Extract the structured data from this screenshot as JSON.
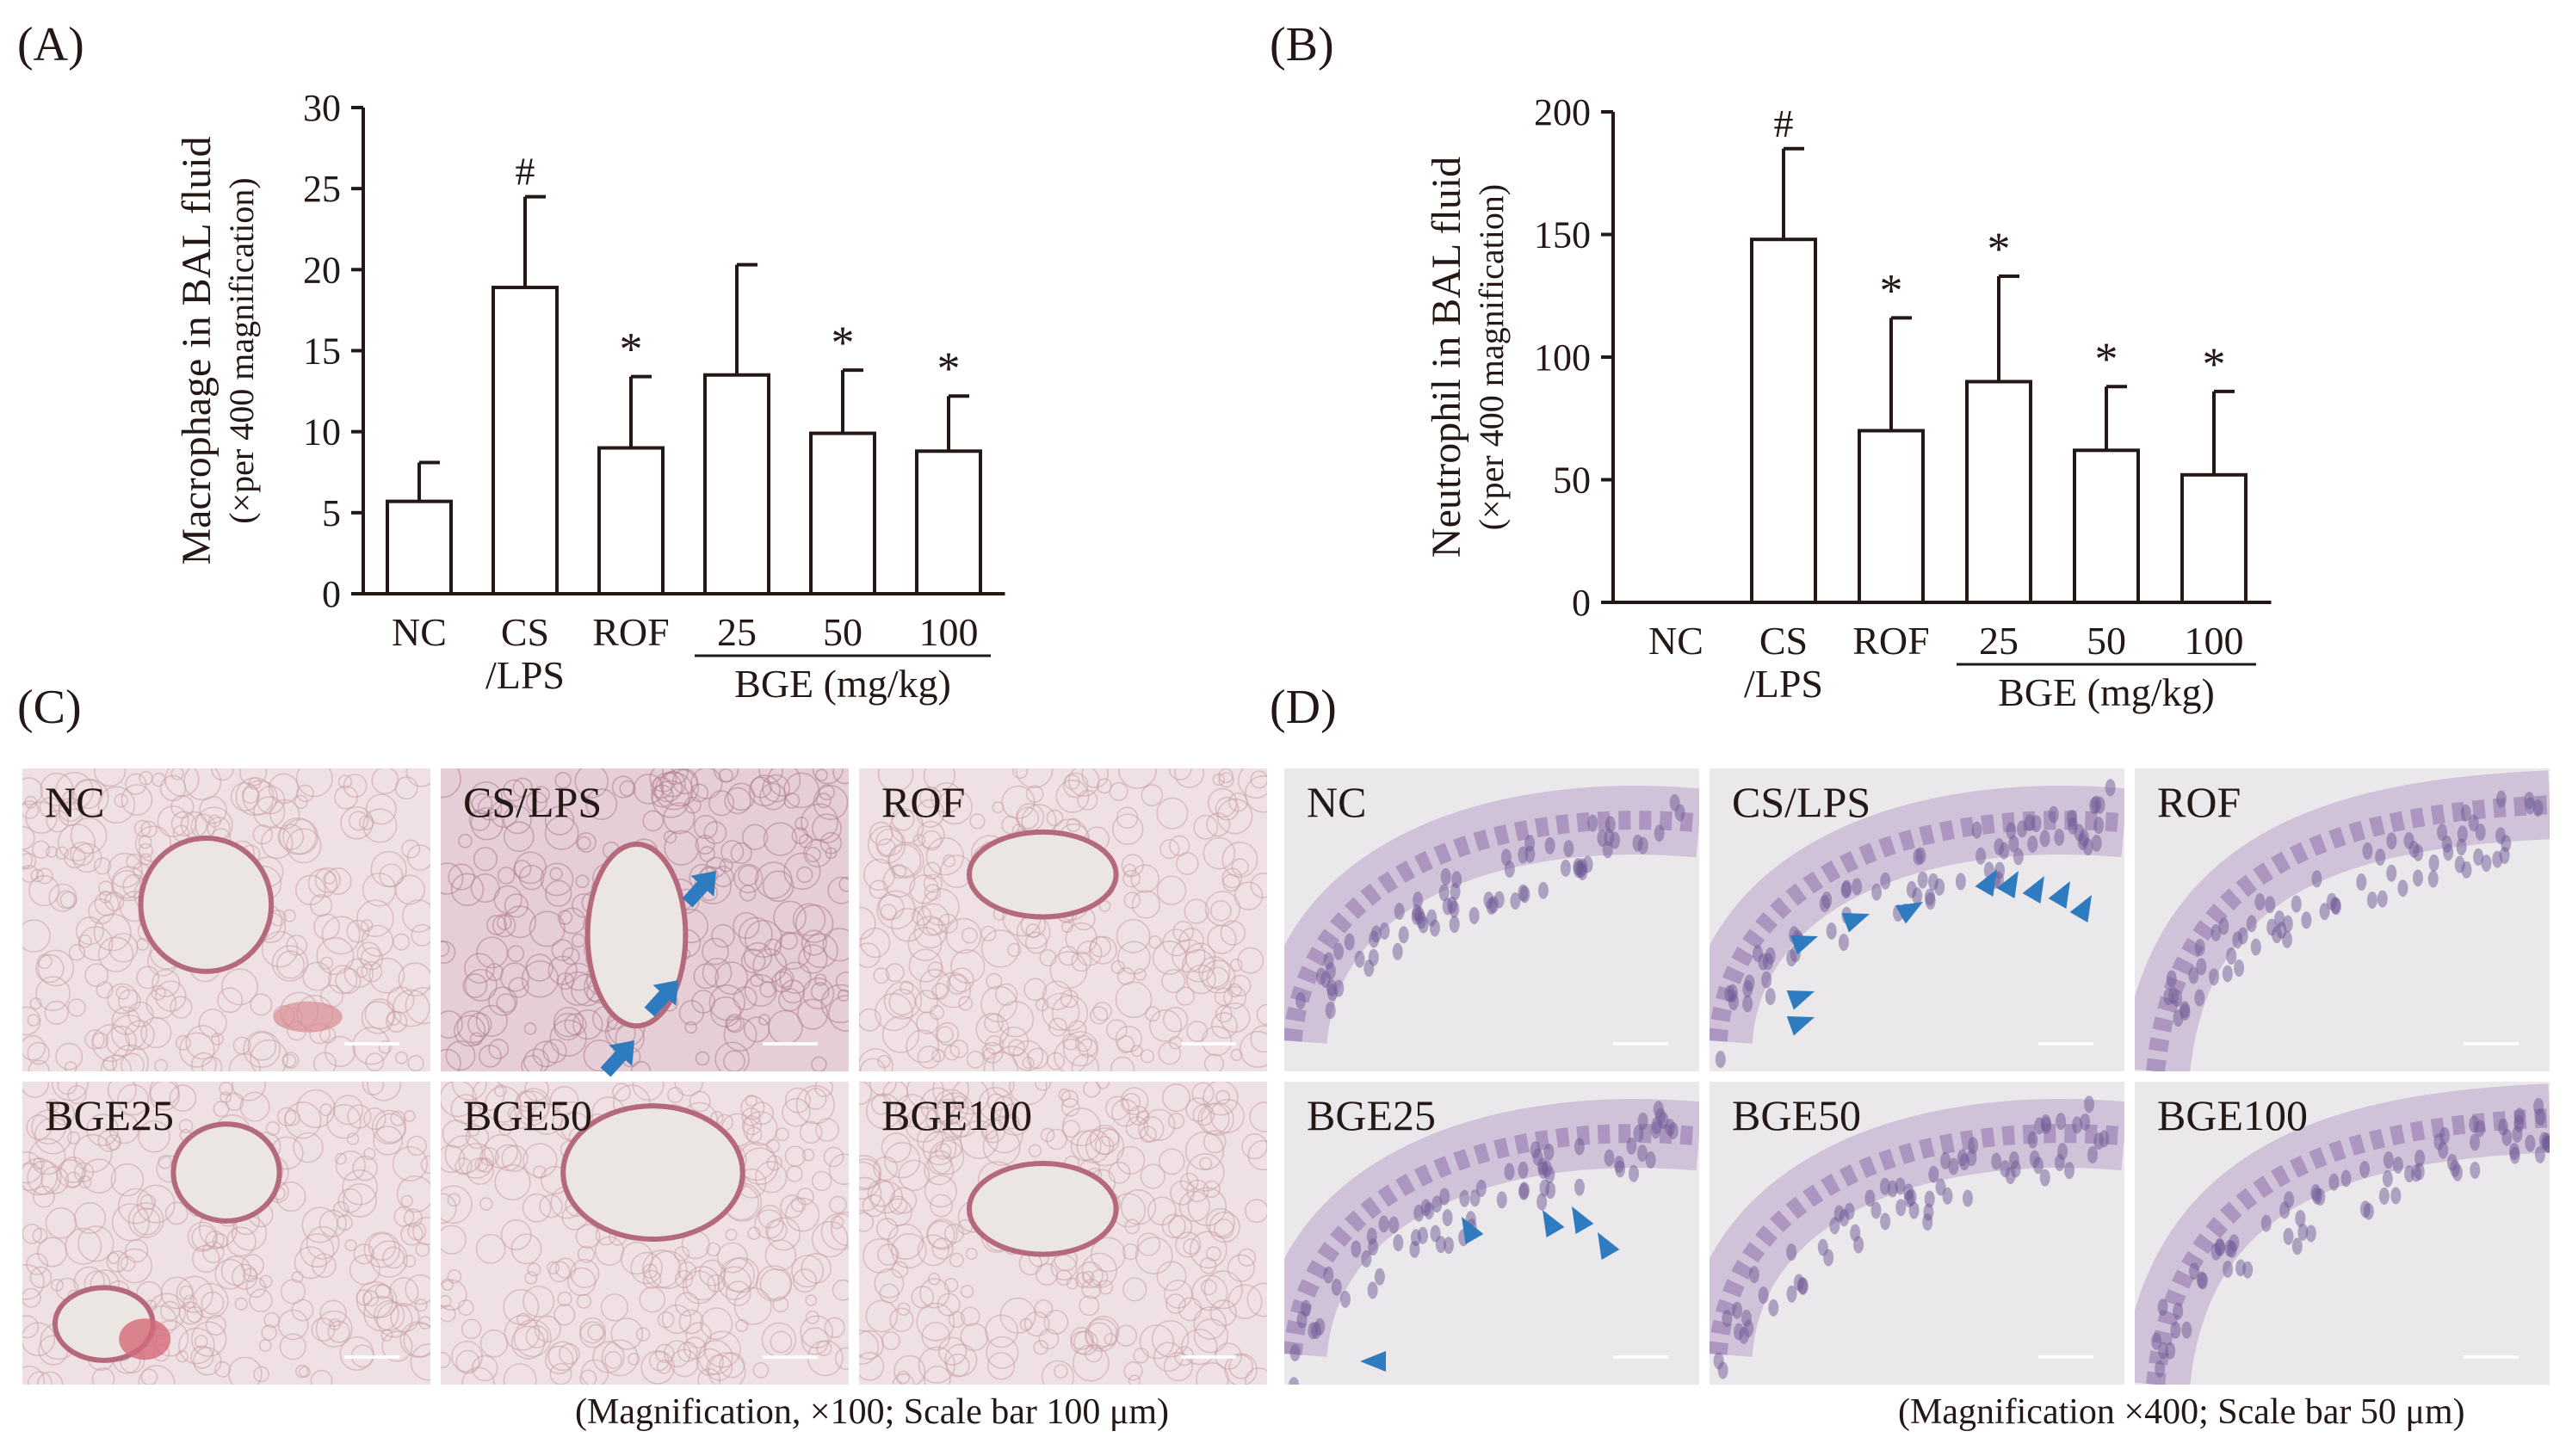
{
  "panels": {
    "A": {
      "label": "(A)",
      "ylabel": "Macrophage in BAL fluid",
      "ylabel_sub": "(×per 400 magnification)",
      "ylim": [
        0,
        30
      ],
      "yticks": [
        0,
        5,
        10,
        15,
        20,
        25,
        30
      ],
      "group_label": "BGE  (mg/kg)"
    },
    "B": {
      "label": "(B)",
      "ylabel": "Neutrophil in BAL fluid",
      "ylabel_sub": "(×per 400 magnification)",
      "ylim": [
        0,
        200
      ],
      "yticks": [
        0,
        50,
        100,
        150,
        200
      ],
      "group_label": "BGE  (mg/kg)"
    },
    "C": {
      "label": "(C)",
      "tiles": [
        "NC",
        "CS/LPS",
        "ROF",
        "BGE25",
        "BGE50",
        "BGE100"
      ],
      "caption": "(Magnification, ×100; Scale bar 100 μm)"
    },
    "D": {
      "label": "(D)",
      "tiles": [
        "NC",
        "CS/LPS",
        "ROF",
        "BGE25",
        "BGE50",
        "BGE100"
      ],
      "caption": "(Magnification ×400; Scale bar 50 μm)"
    }
  },
  "chart_data": [
    {
      "type": "bar",
      "panel": "A",
      "categories": [
        "NC",
        "CS /LPS",
        "ROF",
        "25",
        "50",
        "100"
      ],
      "values": [
        5.7,
        18.9,
        9.0,
        13.5,
        9.9,
        8.8
      ],
      "errors": [
        2.4,
        5.6,
        4.4,
        6.8,
        3.9,
        3.4
      ],
      "annotations": [
        "",
        "#",
        "*",
        "",
        "*",
        "*"
      ],
      "ylabel": "Macrophage in BAL fluid (×per 400 magnification)",
      "ylim": [
        0,
        30
      ],
      "grid": false
    },
    {
      "type": "bar",
      "panel": "B",
      "categories": [
        "NC",
        "CS /LPS",
        "ROF",
        "25",
        "50",
        "100"
      ],
      "values": [
        0,
        148,
        70,
        90,
        62,
        52
      ],
      "errors": [
        0,
        37,
        46,
        43,
        26,
        34
      ],
      "annotations": [
        "",
        "#",
        "*",
        "*",
        "*",
        "*"
      ],
      "ylabel": "Neutrophil in BAL fluid (×per 400 magnification)",
      "ylim": [
        0,
        200
      ],
      "grid": false
    }
  ]
}
